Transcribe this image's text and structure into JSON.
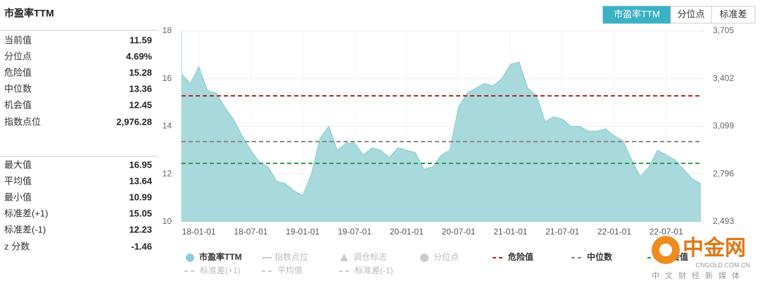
{
  "panel": {
    "title": "市盈率TTM",
    "groups": [
      [
        {
          "label": "当前值",
          "value": "11.59"
        },
        {
          "label": "分位点",
          "value": "4.69%"
        },
        {
          "label": "危险值",
          "value": "15.28"
        },
        {
          "label": "中位数",
          "value": "13.36"
        },
        {
          "label": "机会值",
          "value": "12.45"
        },
        {
          "label": "指数点位",
          "value": "2,976.28"
        }
      ],
      [
        {
          "label": "最大值",
          "value": "16.95"
        },
        {
          "label": "平均值",
          "value": "13.64"
        },
        {
          "label": "最小值",
          "value": "10.99"
        },
        {
          "label": "标准差(+1)",
          "value": "15.05"
        },
        {
          "label": "标准差(-1)",
          "value": "12.23"
        },
        {
          "label": "z 分数",
          "value": "-1.46"
        }
      ]
    ]
  },
  "tabs": [
    "市盈率TTM",
    "分位点",
    "标准差"
  ],
  "chart_data": {
    "type": "area",
    "categories": [
      null,
      null,
      "18-01-01",
      null,
      null,
      null,
      null,
      null,
      "18-07-01",
      null,
      null,
      null,
      null,
      null,
      "19-01-01",
      null,
      null,
      null,
      null,
      null,
      "19-07-01",
      null,
      null,
      null,
      null,
      null,
      "20-01-01",
      null,
      null,
      null,
      null,
      null,
      "20-07-01",
      null,
      null,
      null,
      null,
      null,
      "21-01-01",
      null,
      null,
      null,
      null,
      null,
      "21-07-01",
      null,
      null,
      null,
      null,
      null,
      "22-01-01",
      null,
      null,
      null,
      null,
      null,
      "22-07-01",
      null,
      null,
      null,
      null
    ],
    "series": [
      {
        "name": "市盈率TTM",
        "color": "#8fcfd6",
        "values": [
          16.2,
          15.8,
          16.5,
          15.5,
          15.4,
          14.8,
          14.3,
          13.6,
          13.0,
          12.5,
          12.3,
          11.7,
          11.6,
          11.3,
          11.1,
          12.0,
          13.5,
          14.0,
          13.0,
          13.3,
          13.3,
          12.8,
          13.1,
          13.0,
          12.7,
          13.1,
          13.0,
          12.9,
          12.2,
          12.3,
          12.8,
          13.0,
          14.8,
          15.4,
          15.6,
          15.8,
          15.7,
          16.0,
          16.6,
          16.7,
          15.6,
          15.3,
          14.2,
          14.4,
          14.3,
          14.0,
          14.0,
          13.8,
          13.8,
          13.9,
          13.6,
          13.4,
          12.6,
          11.9,
          12.3,
          13.0,
          12.8,
          12.6,
          12.2,
          11.8,
          11.6
        ]
      }
    ],
    "ylim": [
      10,
      18
    ],
    "yticks": [
      10,
      12,
      14,
      16,
      18
    ],
    "y2lim": [
      2493,
      3705
    ],
    "y2ticks": [
      {
        "value": 2493,
        "label": "2,493"
      },
      {
        "value": 2796,
        "label": "2,796"
      },
      {
        "value": 3099,
        "label": "3,099"
      },
      {
        "value": 3402,
        "label": "3,402"
      },
      {
        "value": 3705,
        "label": "3,705"
      }
    ],
    "grid": true,
    "reference_lines": [
      {
        "name": "危险值",
        "color": "#b22222"
      },
      {
        "name": "中位数",
        "color": "#888888"
      },
      {
        "name": "机会值",
        "color": "#2e9e46"
      }
    ],
    "legend": [
      [
        {
          "name": "市盈率TTM",
          "marker": "circle",
          "color": "#8fcfd6",
          "active": true
        },
        {
          "name": "指数点位",
          "marker": "line",
          "color": "#cccccc",
          "active": false
        },
        {
          "name": "调仓标志",
          "marker": "triangle",
          "color": "#cccccc",
          "active": false
        },
        {
          "name": "分位点",
          "marker": "circle",
          "color": "#cccccc",
          "active": false
        },
        {
          "name": "危险值",
          "marker": "dash",
          "color": "#b22222",
          "active": true
        },
        {
          "name": "中位数",
          "marker": "dash",
          "color": "#888888",
          "active": true
        },
        {
          "name": "机会值",
          "marker": "dash",
          "color": "#2e9e46",
          "active": true
        }
      ],
      [
        {
          "name": "标准差(+1)",
          "marker": "dash",
          "color": "#cccccc",
          "active": false
        },
        {
          "name": "平均值",
          "marker": "dash",
          "color": "#cccccc",
          "active": false
        },
        {
          "name": "标准差(-1)",
          "marker": "dash",
          "color": "#cccccc",
          "active": false
        }
      ]
    ]
  },
  "watermark": {
    "name": "中金网",
    "url": "CNGOLD.COM.CN",
    "slogan": "中文财经新媒体"
  }
}
